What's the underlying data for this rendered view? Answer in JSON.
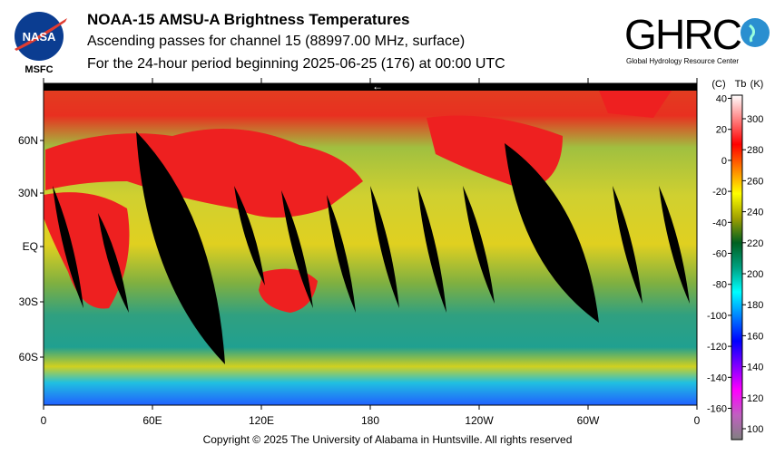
{
  "header": {
    "title": "NOAA-15 AMSU-A Brightness Temperatures",
    "subtitle": "Ascending passes for channel 15 (88997.00 MHz, surface)",
    "period": "For the 24-hour period beginning 2025-06-25 (176) at 00:00 UTC"
  },
  "logos": {
    "nasa": "NASA",
    "nasa_center": "MSFC",
    "ghrc": "GHRC",
    "ghrc_full": "Global Hydrology Resource Center"
  },
  "map": {
    "lat_labels": [
      "60N",
      "30N",
      "EQ",
      "30S",
      "60S"
    ],
    "lon_labels": [
      "0",
      "60E",
      "120E",
      "180",
      "120W",
      "60W",
      "0"
    ],
    "direction_arrow": "←"
  },
  "colorbar": {
    "header": [
      "(C)",
      "Tb",
      "(K)"
    ],
    "celsius": [
      "40",
      "20",
      "0",
      "-20",
      "-40",
      "-60",
      "-80",
      "-100",
      "-120",
      "-140",
      "-160"
    ],
    "kelvin": [
      "300",
      "280",
      "260",
      "240",
      "220",
      "200",
      "180",
      "160",
      "140",
      "120",
      "100"
    ],
    "colors": [
      "#808080",
      "#c060c0",
      "#ff00ff",
      "#8000ff",
      "#0000ff",
      "#0080ff",
      "#00ffff",
      "#00a080",
      "#006020",
      "#a0a000",
      "#ffff00",
      "#ff8000",
      "#ff0000",
      "#ff8080",
      "#ffffff"
    ]
  },
  "footer": {
    "copyright": "Copyright © 2025 The University of Alabama in Huntsville.  All rights reserved"
  }
}
